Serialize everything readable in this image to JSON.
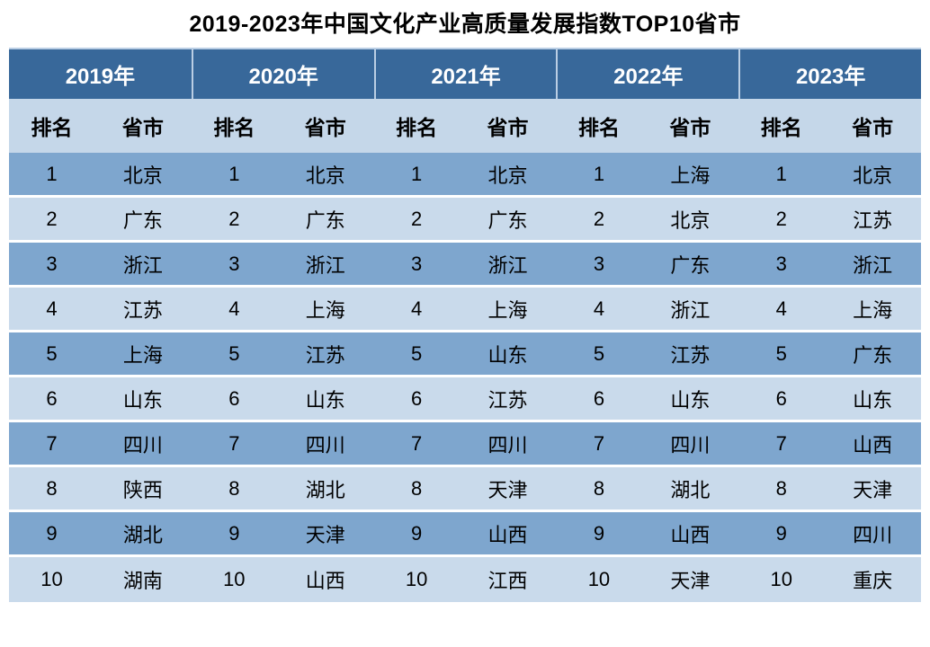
{
  "title": "2019-2023年中国文化产业高质量发展指数TOP10省市",
  "chart_data": {
    "type": "table",
    "title": "2019-2023年中国文化产业高质量发展指数TOP10省市",
    "year_columns": [
      "2019年",
      "2020年",
      "2021年",
      "2022年",
      "2023年"
    ],
    "sub_columns": [
      "排名",
      "省市"
    ],
    "ranks": [
      "1",
      "2",
      "3",
      "4",
      "5",
      "6",
      "7",
      "8",
      "9",
      "10"
    ],
    "rankings": {
      "2019年": [
        "北京",
        "广东",
        "浙江",
        "江苏",
        "上海",
        "山东",
        "四川",
        "陕西",
        "湖北",
        "湖南"
      ],
      "2020年": [
        "北京",
        "广东",
        "浙江",
        "上海",
        "江苏",
        "山东",
        "四川",
        "湖北",
        "天津",
        "山西"
      ],
      "2021年": [
        "北京",
        "广东",
        "浙江",
        "上海",
        "山东",
        "江苏",
        "四川",
        "天津",
        "山西",
        "江西"
      ],
      "2022年": [
        "上海",
        "北京",
        "广东",
        "浙江",
        "江苏",
        "山东",
        "四川",
        "湖北",
        "山西",
        "天津"
      ],
      "2023年": [
        "北京",
        "江苏",
        "浙江",
        "上海",
        "广东",
        "山东",
        "山西",
        "天津",
        "四川",
        "重庆"
      ]
    }
  },
  "colors": {
    "header_bg": "#38689A",
    "header_text": "#FFFFFF",
    "subheader_bg": "#C5D7E9",
    "row_odd_bg": "#7EA6CE",
    "row_even_bg": "#C9DAEB",
    "body_text": "#000000",
    "divider": "#BACEE4",
    "row_separator": "#FFFFFF"
  }
}
